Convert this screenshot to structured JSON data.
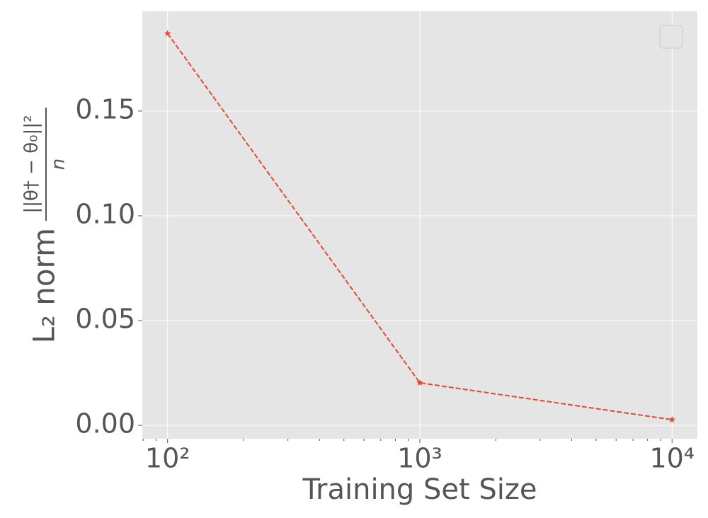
{
  "chart_data": {
    "type": "line",
    "xlabel": "Training Set Size",
    "ylabel": "L₂ norm",
    "ylabel_fraction": {
      "numerator": "||θ† − θ₀||²",
      "denominator": "n"
    },
    "x": [
      100,
      1000,
      10000
    ],
    "series": [
      {
        "color": "#e24a33",
        "values": [
          0.187,
          0.0203,
          0.0027
        ]
      }
    ],
    "xscale": "log",
    "xlim": [
      79.4,
      12600
    ],
    "xticks": [
      {
        "value": 100,
        "label": "10²"
      },
      {
        "value": 1000,
        "label": "10³"
      },
      {
        "value": 10000,
        "label": "10⁴"
      }
    ],
    "xminorticks": [
      80,
      90,
      200,
      300,
      400,
      500,
      600,
      700,
      800,
      900,
      2000,
      3000,
      4000,
      5000,
      6000,
      7000,
      8000,
      9000
    ],
    "ylim": [
      -0.0064,
      0.1976
    ],
    "yticks": [
      {
        "value": 0,
        "label": "0.00"
      },
      {
        "value": 0.05,
        "label": "0.05"
      },
      {
        "value": 0.1,
        "label": "0.10"
      },
      {
        "value": 0.15,
        "label": "0.15"
      }
    ],
    "grid": true,
    "legend": "upper right"
  }
}
